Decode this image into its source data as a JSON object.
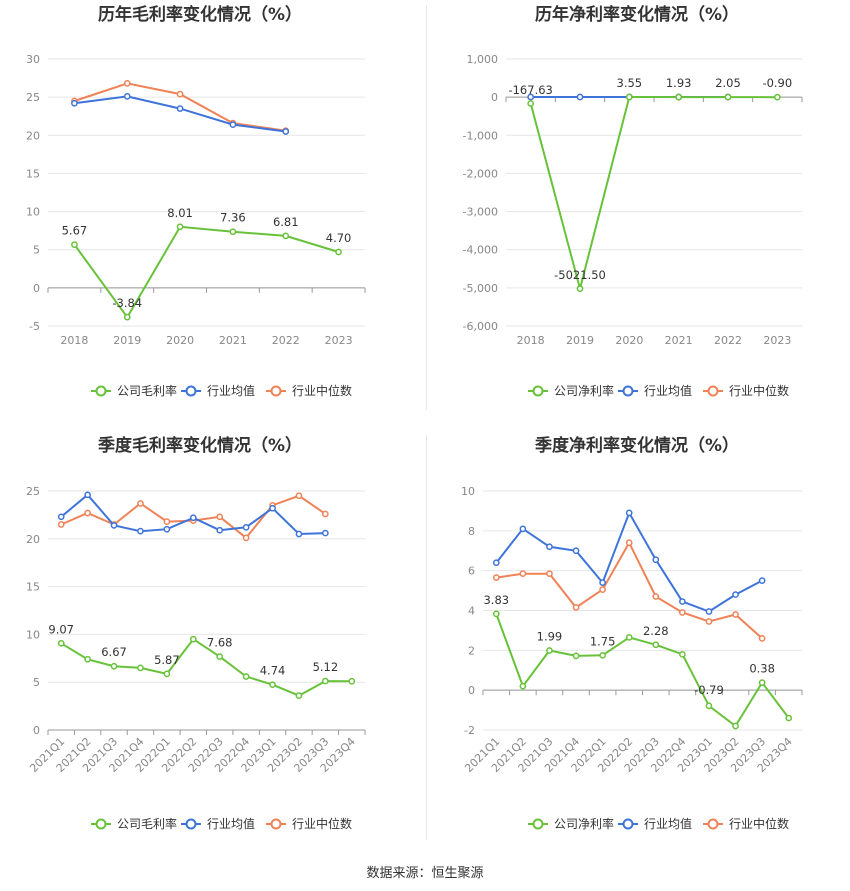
{
  "source_text": "数据来源：恒生聚源",
  "colors": {
    "company": "#67c23a",
    "industry_avg": "#3e74d9",
    "industry_median": "#f08257"
  },
  "chart_data": [
    {
      "type": "line",
      "title": "历年毛利率变化情况（%）",
      "categories": [
        "2018",
        "2019",
        "2020",
        "2021",
        "2022",
        "2023"
      ],
      "ylim": [
        -5,
        30
      ],
      "yticks": [
        -5,
        0,
        5,
        10,
        15,
        20,
        25,
        30
      ],
      "grid": true,
      "legend_position": "bottom",
      "series": [
        {
          "name": "公司毛利率",
          "values": [
            5.67,
            -3.84,
            8.01,
            7.36,
            6.81,
            4.7
          ],
          "labels": [
            "5.67",
            "-3.84",
            "8.01",
            "7.36",
            "6.81",
            "4.70"
          ]
        },
        {
          "name": "行业均值",
          "values": [
            24.2,
            25.1,
            23.5,
            21.4,
            20.5,
            null
          ]
        },
        {
          "name": "行业中位数",
          "values": [
            24.5,
            26.8,
            25.4,
            21.6,
            20.6,
            null
          ]
        }
      ]
    },
    {
      "type": "line",
      "title": "历年净利率变化情况（%）",
      "categories": [
        "2018",
        "2019",
        "2020",
        "2021",
        "2022",
        "2023"
      ],
      "ylim": [
        -6000,
        1000
      ],
      "yticks": [
        -6000,
        -5000,
        -4000,
        -3000,
        -2000,
        -1000,
        0,
        1000
      ],
      "ytick_labels": [
        "-6,000",
        "-5,000",
        "-4,000",
        "-3,000",
        "-2,000",
        "-1,000",
        "0",
        "1,000"
      ],
      "grid": true,
      "legend_position": "bottom",
      "series": [
        {
          "name": "公司净利率",
          "values": [
            -167.63,
            -5021.5,
            3.55,
            1.93,
            2.05,
            -0.9
          ],
          "labels": [
            "-167.63",
            "-5021.50",
            "3.55",
            "1.93",
            "2.05",
            "-0.90"
          ]
        },
        {
          "name": "行业均值",
          "values": [
            5,
            4,
            5,
            4,
            3,
            null
          ]
        },
        {
          "name": "行业中位数",
          "values": [
            5,
            4,
            5,
            4,
            3,
            null
          ]
        }
      ]
    },
    {
      "type": "line",
      "title": "季度毛利率变化情况（%）",
      "categories": [
        "2021Q1",
        "2021Q2",
        "2021Q3",
        "2021Q4",
        "2022Q1",
        "2022Q2",
        "2022Q3",
        "2022Q4",
        "2023Q1",
        "2023Q2",
        "2023Q3",
        "2023Q4"
      ],
      "ylim": [
        0,
        25
      ],
      "yticks": [
        0,
        5,
        10,
        15,
        20,
        25
      ],
      "grid": true,
      "legend_position": "bottom",
      "series": [
        {
          "name": "公司毛利率",
          "values": [
            9.07,
            7.4,
            6.67,
            6.5,
            5.87,
            9.5,
            7.68,
            5.6,
            4.74,
            3.6,
            5.12,
            5.1
          ],
          "labels": [
            "9.07",
            "",
            "6.67",
            "",
            "5.87",
            "",
            "7.68",
            "",
            "4.74",
            "",
            "5.12",
            ""
          ]
        },
        {
          "name": "行业均值",
          "values": [
            22.3,
            24.6,
            21.4,
            20.8,
            21.0,
            22.2,
            20.9,
            21.2,
            23.2,
            20.5,
            20.6,
            null
          ]
        },
        {
          "name": "行业中位数",
          "values": [
            21.5,
            22.7,
            21.5,
            23.7,
            21.8,
            21.9,
            22.3,
            20.1,
            23.5,
            24.5,
            22.6,
            null
          ]
        }
      ]
    },
    {
      "type": "line",
      "title": "季度净利率变化情况（%）",
      "categories": [
        "2021Q1",
        "2021Q2",
        "2021Q3",
        "2021Q4",
        "2022Q1",
        "2022Q2",
        "2022Q3",
        "2022Q4",
        "2023Q1",
        "2023Q2",
        "2023Q3",
        "2023Q4"
      ],
      "ylim": [
        -2,
        10
      ],
      "yticks": [
        -2,
        0,
        2,
        4,
        6,
        8,
        10
      ],
      "grid": true,
      "legend_position": "bottom",
      "series": [
        {
          "name": "公司净利率",
          "values": [
            3.83,
            0.2,
            1.99,
            1.72,
            1.75,
            2.65,
            2.28,
            1.8,
            -0.79,
            -1.8,
            0.38,
            -1.4
          ],
          "labels": [
            "3.83",
            "",
            "1.99",
            "",
            "1.75",
            "",
            "2.28",
            "",
            "-0.79",
            "",
            "0.38",
            ""
          ]
        },
        {
          "name": "行业均值",
          "values": [
            6.4,
            8.1,
            7.2,
            7.0,
            5.4,
            8.9,
            6.55,
            4.45,
            3.95,
            4.8,
            5.5,
            null
          ]
        },
        {
          "name": "行业中位数",
          "values": [
            5.65,
            5.85,
            5.85,
            4.15,
            5.05,
            7.4,
            4.7,
            3.9,
            3.45,
            3.8,
            2.6,
            null
          ]
        }
      ]
    }
  ]
}
